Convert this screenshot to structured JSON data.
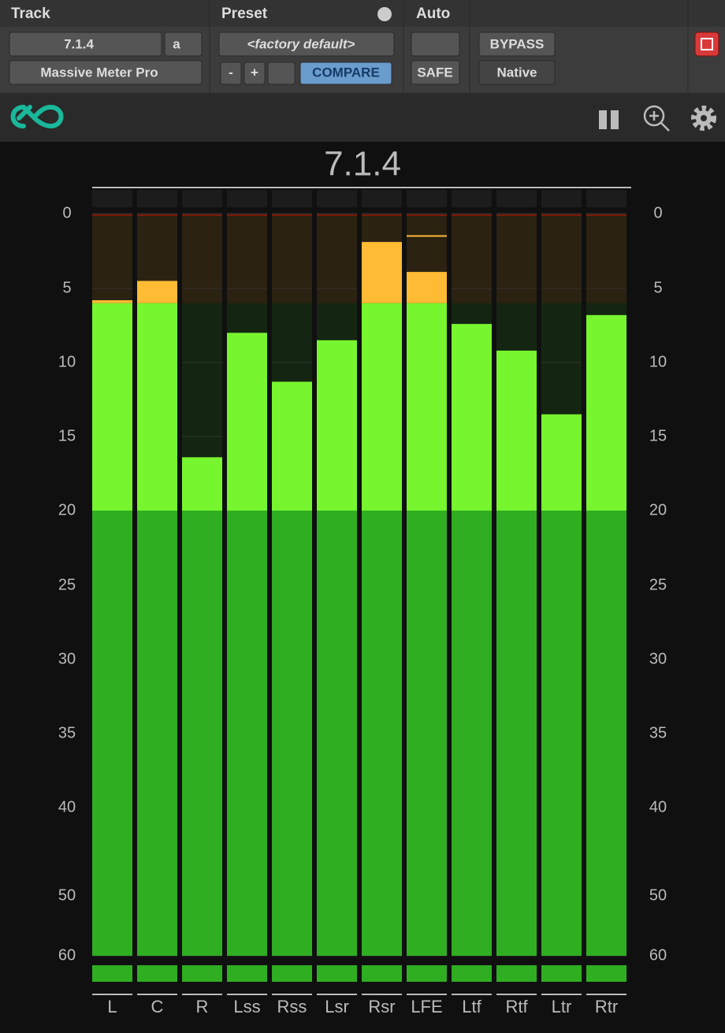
{
  "toolbar": {
    "track_label": "Track",
    "preset_label": "Preset",
    "auto_label": "Auto",
    "track_name": "7.1.4",
    "track_variant": "a",
    "plugin_name": "Massive Meter Pro",
    "preset_name": "<factory default>",
    "minus": "-",
    "plus": "+",
    "compare": "COMPARE",
    "safe": "SAFE",
    "bypass": "BYPASS",
    "native": "Native"
  },
  "chart_data": {
    "type": "meter",
    "title": "7.1.4",
    "categories": [
      "L",
      "C",
      "R",
      "Lss",
      "Rss",
      "Lsr",
      "Rsr",
      "LFE",
      "Ltf",
      "Rtf",
      "Ltr",
      "Rtr"
    ],
    "values": [
      5.8,
      4.5,
      16.4,
      8.0,
      11.3,
      8.5,
      1.9,
      3.9,
      7.4,
      9.2,
      13.5,
      6.8
    ],
    "peak_hold": [
      null,
      null,
      null,
      null,
      null,
      null,
      null,
      1.5,
      null,
      null,
      null,
      null
    ],
    "ylim": [
      0,
      60
    ],
    "yticks": [
      0,
      5,
      10,
      15,
      20,
      25,
      30,
      35,
      40,
      50,
      60
    ],
    "zones": [
      {
        "from": 0,
        "to": 6,
        "color": "#ffbb33",
        "background": "#2b2212"
      },
      {
        "from": 6,
        "to": 20,
        "color": "#77f52e",
        "background": "#142611"
      },
      {
        "from": 20,
        "to": 60,
        "color": "#2fae22",
        "background": "#2fae22"
      }
    ]
  }
}
